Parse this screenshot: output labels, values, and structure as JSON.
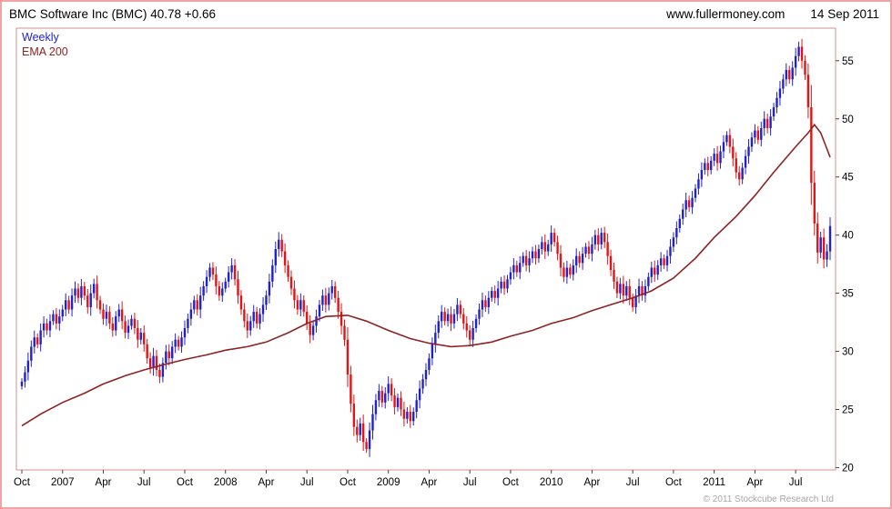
{
  "header": {
    "title": "BMC Software Inc (BMC) 40.78 +0.66",
    "website": "www.fullermoney.com",
    "date": "14 Sep 2011"
  },
  "legend": {
    "timeframe": "Weekly",
    "ema": "EMA 200"
  },
  "footer": {
    "copyright": "© 2011 Stockcube Research Ltd"
  },
  "chart_data": {
    "type": "candlestick",
    "title": "BMC Software Inc (BMC)",
    "last_price": 40.78,
    "change": "+0.66",
    "interval": "Weekly",
    "overlay": "EMA 200",
    "legend_position": "top-left",
    "grid": false,
    "ylim": [
      19.8,
      57.8
    ],
    "y_ticks": [
      20,
      25,
      30,
      35,
      40,
      45,
      50,
      55
    ],
    "x_ticks": [
      {
        "label": "Oct",
        "i": 0
      },
      {
        "label": "2007",
        "i": 13
      },
      {
        "label": "Apr",
        "i": 26
      },
      {
        "label": "Jul",
        "i": 39
      },
      {
        "label": "Oct",
        "i": 52
      },
      {
        "label": "2008",
        "i": 65
      },
      {
        "label": "Apr",
        "i": 78
      },
      {
        "label": "Jul",
        "i": 91
      },
      {
        "label": "Oct",
        "i": 104
      },
      {
        "label": "2009",
        "i": 117
      },
      {
        "label": "Apr",
        "i": 130
      },
      {
        "label": "Jul",
        "i": 143
      },
      {
        "label": "Oct",
        "i": 156
      },
      {
        "label": "2010",
        "i": 169
      },
      {
        "label": "Apr",
        "i": 182
      },
      {
        "label": "Jul",
        "i": 195
      },
      {
        "label": "Oct",
        "i": 208
      },
      {
        "label": "2011",
        "i": 221
      },
      {
        "label": "Apr",
        "i": 234
      },
      {
        "label": "Jul",
        "i": 247
      }
    ],
    "first_open": 27.0,
    "weekly_closes": [
      27.4,
      28.2,
      29.2,
      30.4,
      31.2,
      30.6,
      31.8,
      32.4,
      31.8,
      32.6,
      33.2,
      32.4,
      33.0,
      33.6,
      34.4,
      33.6,
      34.8,
      35.4,
      34.6,
      35.6,
      34.8,
      33.8,
      35.0,
      35.8,
      34.4,
      33.6,
      32.8,
      33.4,
      32.4,
      31.8,
      33.0,
      33.6,
      32.6,
      31.6,
      32.2,
      32.8,
      32.0,
      31.0,
      31.6,
      30.6,
      29.4,
      28.6,
      29.6,
      28.4,
      27.8,
      29.0,
      30.0,
      29.4,
      30.4,
      31.0,
      30.4,
      31.2,
      32.0,
      32.8,
      33.6,
      34.4,
      33.6,
      34.8,
      35.6,
      36.4,
      37.2,
      36.6,
      35.6,
      34.8,
      35.4,
      36.0,
      36.8,
      37.4,
      36.2,
      34.8,
      33.6,
      32.6,
      31.8,
      32.6,
      33.4,
      32.4,
      33.2,
      34.0,
      34.8,
      36.0,
      37.4,
      38.8,
      39.6,
      38.6,
      37.4,
      36.4,
      35.4,
      34.4,
      33.6,
      34.4,
      33.4,
      32.4,
      31.4,
      32.2,
      33.0,
      34.0,
      34.8,
      34.0,
      35.0,
      35.6,
      34.6,
      33.4,
      32.2,
      31.0,
      28.0,
      25.5,
      23.5,
      22.8,
      23.8,
      22.2,
      21.6,
      23.2,
      24.6,
      25.8,
      26.6,
      25.6,
      26.4,
      27.2,
      26.2,
      25.2,
      26.0,
      25.0,
      24.2,
      24.8,
      24.0,
      24.8,
      25.8,
      26.8,
      27.6,
      28.4,
      29.4,
      30.6,
      31.6,
      32.6,
      33.4,
      32.6,
      33.2,
      32.4,
      33.2,
      34.0,
      33.2,
      32.4,
      31.8,
      31.0,
      32.0,
      32.8,
      33.6,
      34.4,
      33.8,
      34.6,
      35.2,
      34.6,
      35.4,
      36.0,
      35.4,
      36.2,
      36.8,
      37.4,
      36.8,
      37.6,
      38.2,
      37.4,
      38.0,
      38.6,
      38.0,
      38.8,
      39.4,
      38.6,
      39.2,
      40.2,
      39.4,
      38.4,
      37.2,
      36.4,
      37.2,
      36.6,
      37.4,
      38.2,
      37.6,
      38.4,
      39.0,
      38.4,
      39.2,
      40.0,
      39.2,
      40.2,
      39.4,
      38.2,
      37.0,
      36.0,
      35.0,
      35.8,
      34.8,
      35.6,
      34.6,
      33.8,
      34.8,
      35.6,
      34.8,
      35.6,
      36.4,
      37.2,
      36.6,
      37.4,
      38.0,
      37.4,
      38.2,
      39.0,
      39.8,
      40.6,
      41.4,
      42.2,
      43.0,
      42.4,
      43.2,
      44.0,
      44.8,
      45.6,
      46.2,
      45.6,
      46.4,
      47.0,
      46.2,
      47.2,
      48.0,
      48.6,
      47.6,
      46.6,
      45.4,
      44.8,
      45.8,
      46.8,
      47.6,
      48.4,
      49.0,
      48.2,
      49.2,
      50.0,
      49.2,
      50.2,
      51.0,
      51.8,
      52.6,
      53.4,
      54.2,
      53.4,
      54.4,
      55.4,
      56.2,
      55.0,
      53.8,
      51.0,
      44.5,
      41.0,
      38.5,
      39.8,
      37.9,
      38.6,
      40.78
    ],
    "ema_points": [
      [
        0,
        23.6
      ],
      [
        6,
        24.6
      ],
      [
        13,
        25.6
      ],
      [
        20,
        26.4
      ],
      [
        26,
        27.2
      ],
      [
        33,
        27.9
      ],
      [
        39,
        28.4
      ],
      [
        46,
        28.9
      ],
      [
        52,
        29.3
      ],
      [
        59,
        29.7
      ],
      [
        65,
        30.1
      ],
      [
        72,
        30.4
      ],
      [
        78,
        30.8
      ],
      [
        85,
        31.6
      ],
      [
        91,
        32.4
      ],
      [
        97,
        33.0
      ],
      [
        104,
        33.1
      ],
      [
        110,
        32.6
      ],
      [
        117,
        31.8
      ],
      [
        124,
        31.1
      ],
      [
        130,
        30.7
      ],
      [
        137,
        30.4
      ],
      [
        143,
        30.5
      ],
      [
        150,
        30.8
      ],
      [
        156,
        31.3
      ],
      [
        163,
        31.8
      ],
      [
        169,
        32.4
      ],
      [
        176,
        32.9
      ],
      [
        182,
        33.5
      ],
      [
        189,
        34.1
      ],
      [
        195,
        34.6
      ],
      [
        201,
        35.2
      ],
      [
        208,
        36.3
      ],
      [
        215,
        38.0
      ],
      [
        221,
        39.8
      ],
      [
        228,
        41.6
      ],
      [
        234,
        43.4
      ],
      [
        240,
        45.4
      ],
      [
        247,
        47.6
      ],
      [
        251,
        48.8
      ],
      [
        253,
        49.5
      ],
      [
        255,
        48.8
      ],
      [
        257,
        47.4
      ],
      [
        258,
        46.7
      ]
    ],
    "colors": {
      "up": "#2222cc",
      "down": "#e41414",
      "ema": "#8f2222",
      "frame": "#d98f8f",
      "tick": "#444444"
    }
  }
}
